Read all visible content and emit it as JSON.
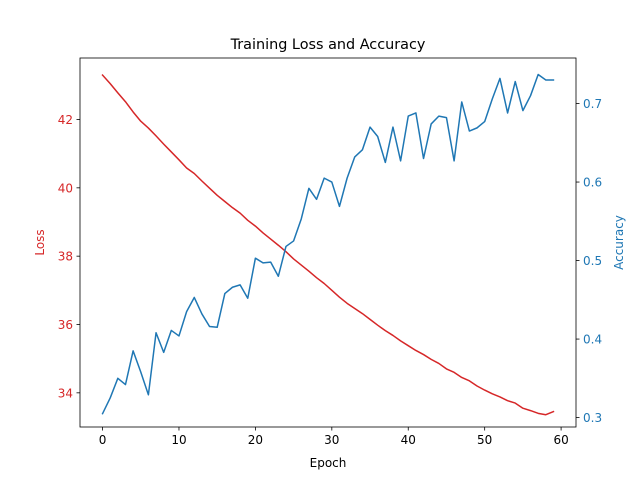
{
  "chart_data": {
    "type": "line",
    "title": "Training Loss and Accuracy",
    "xlabel": "Epoch",
    "xlim": [
      -2.95,
      61.95
    ],
    "xticks": [
      0,
      10,
      20,
      30,
      40,
      50,
      60
    ],
    "x": [
      0,
      1,
      2,
      3,
      4,
      5,
      6,
      7,
      8,
      9,
      10,
      11,
      12,
      13,
      14,
      15,
      16,
      17,
      18,
      19,
      20,
      21,
      22,
      23,
      24,
      25,
      26,
      27,
      28,
      29,
      30,
      31,
      32,
      33,
      34,
      35,
      36,
      37,
      38,
      39,
      40,
      41,
      42,
      43,
      44,
      45,
      46,
      47,
      48,
      49,
      50,
      51,
      52,
      53,
      54,
      55,
      56,
      57,
      58,
      59
    ],
    "left_axis": {
      "label": "Loss",
      "color": "#d62728",
      "ylim": [
        33.0,
        43.8
      ],
      "ticks": [
        34,
        36,
        38,
        40,
        42
      ]
    },
    "right_axis": {
      "label": "Accuracy",
      "color": "#1f77b4",
      "ylim": [
        0.288,
        0.758
      ],
      "ticks": [
        0.3,
        0.4,
        0.5,
        0.6,
        0.7
      ]
    },
    "series": [
      {
        "axis": "left",
        "color": "#d62728",
        "values": [
          43.3,
          43.05,
          42.78,
          42.52,
          42.22,
          41.95,
          41.75,
          41.52,
          41.28,
          41.05,
          40.82,
          40.58,
          40.42,
          40.2,
          39.99,
          39.78,
          39.6,
          39.42,
          39.26,
          39.05,
          38.88,
          38.68,
          38.5,
          38.32,
          38.13,
          37.92,
          37.74,
          37.56,
          37.37,
          37.2,
          37.0,
          36.8,
          36.62,
          36.47,
          36.32,
          36.15,
          35.98,
          35.82,
          35.68,
          35.52,
          35.38,
          35.24,
          35.12,
          34.98,
          34.86,
          34.7,
          34.6,
          34.45,
          34.35,
          34.2,
          34.08,
          33.97,
          33.88,
          33.77,
          33.7,
          33.55,
          33.48,
          33.4,
          33.36,
          33.45
        ]
      },
      {
        "axis": "right",
        "color": "#1f77b4",
        "values": [
          0.305,
          0.325,
          0.35,
          0.342,
          0.385,
          0.358,
          0.329,
          0.408,
          0.383,
          0.411,
          0.404,
          0.435,
          0.453,
          0.432,
          0.416,
          0.415,
          0.458,
          0.466,
          0.469,
          0.452,
          0.503,
          0.497,
          0.498,
          0.48,
          0.518,
          0.525,
          0.553,
          0.592,
          0.578,
          0.605,
          0.6,
          0.569,
          0.605,
          0.632,
          0.641,
          0.67,
          0.658,
          0.625,
          0.67,
          0.627,
          0.684,
          0.688,
          0.63,
          0.674,
          0.684,
          0.682,
          0.627,
          0.702,
          0.665,
          0.669,
          0.677,
          0.706,
          0.732,
          0.688,
          0.728,
          0.691,
          0.71,
          0.737,
          0.73,
          0.73
        ]
      }
    ]
  }
}
